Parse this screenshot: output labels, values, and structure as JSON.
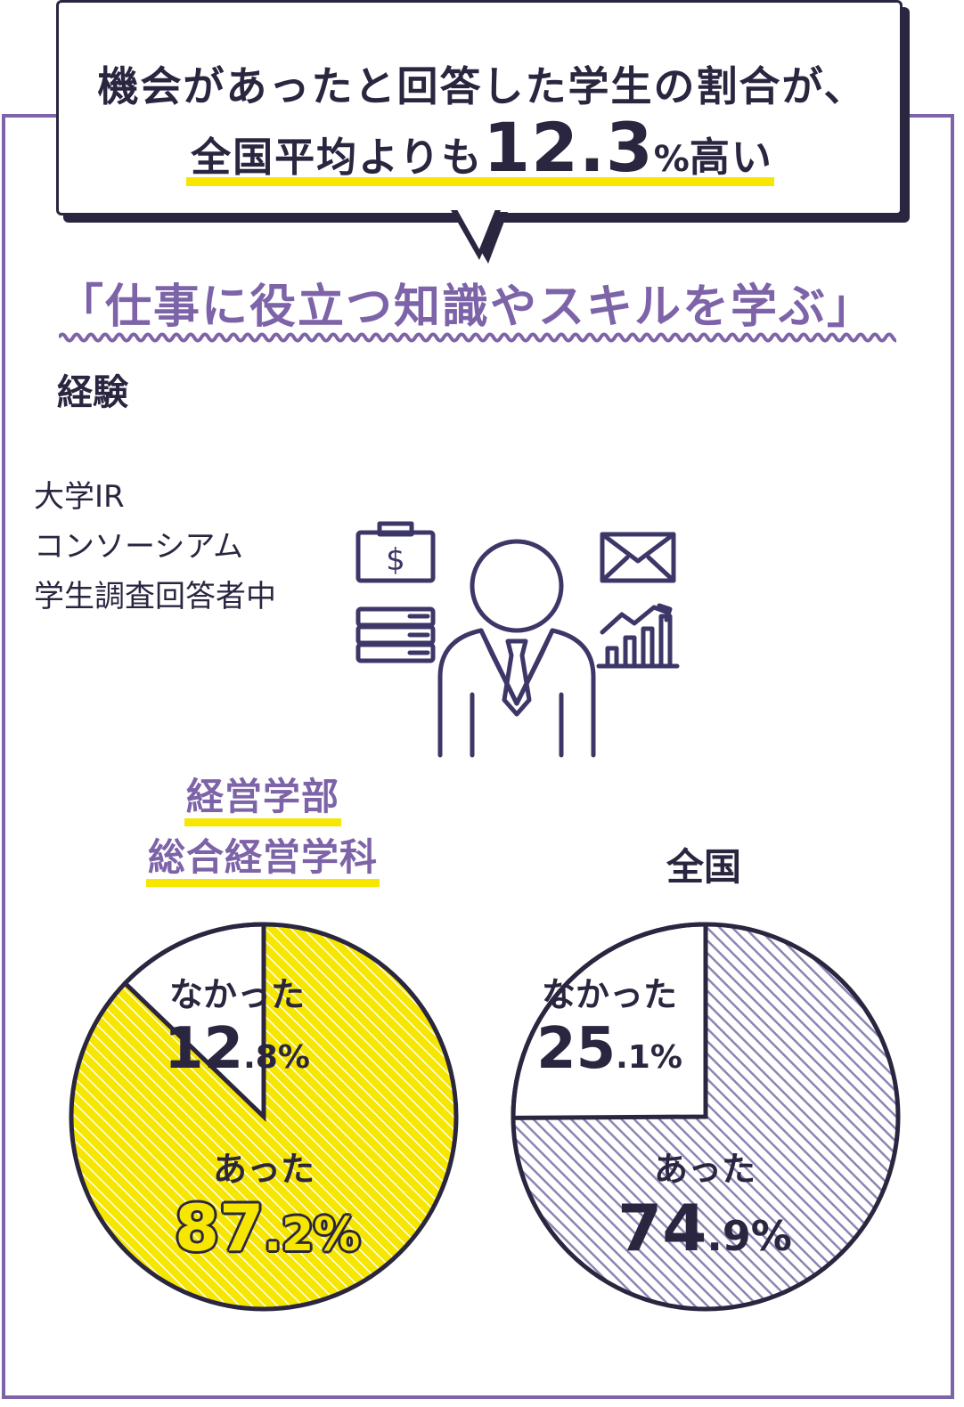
{
  "headline": {
    "line1": "機会があったと回答した学生の割合が、",
    "line2_prefix": "全国平均よりも",
    "line2_number": "12.3",
    "line2_pct": "%",
    "line2_suffix": "高い"
  },
  "topic": {
    "title": "「仕事に役立つ知識やスキルを学ぶ」",
    "subtitle": "経験"
  },
  "note": [
    "大学IR",
    "コンソーシアム",
    "学生調査回答者中"
  ],
  "colors": {
    "accent_purple": "#7d63a8",
    "ink": "#2b2640",
    "highlight_yellow": "#f6e600",
    "hatch_purple": "#8e84b4",
    "background_tint": "#e7e1ef"
  },
  "icons": [
    "money-bag-icon",
    "books-icon",
    "businessperson-icon",
    "envelope-icon",
    "growth-chart-icon"
  ],
  "chart_data": [
    {
      "type": "pie",
      "title": "経営学部 総合経営学科",
      "title_lines": [
        "経営学部",
        "総合経営学科"
      ],
      "slices": [
        {
          "label": "あった",
          "value": 87.2,
          "int": "87",
          "dec": ".2%",
          "fill": "yellow-hatch"
        },
        {
          "label": "なかった",
          "value": 12.8,
          "int": "12",
          "dec": ".8%",
          "fill": "white"
        }
      ]
    },
    {
      "type": "pie",
      "title": "全国",
      "slices": [
        {
          "label": "あった",
          "value": 74.9,
          "int": "74",
          "dec": ".9%",
          "fill": "purple-hatch"
        },
        {
          "label": "なかった",
          "value": 25.1,
          "int": "25",
          "dec": ".1%",
          "fill": "white"
        }
      ]
    }
  ]
}
